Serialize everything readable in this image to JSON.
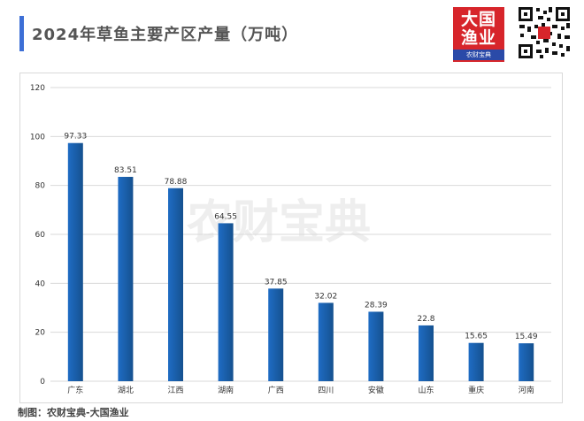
{
  "header": {
    "title": "2024年草鱼主要产区产量（万吨）",
    "accent_color": "#3d6fd6"
  },
  "logo": {
    "line1": "大国",
    "line2": "渔业",
    "line3": "农财宝典"
  },
  "watermark": "农财宝典",
  "footer": {
    "credit": "制图：农财宝典-大国渔业"
  },
  "colors": {
    "bar_top": "#1f6cc4",
    "bar_bottom": "#15518f",
    "grid": "#d9d9d9",
    "tick_text": "#333333",
    "logo_red": "#d7252b",
    "logo_blue": "#2a4aa8"
  },
  "chart_data": {
    "type": "bar",
    "title": "2024年草鱼主要产区产量（万吨）",
    "xlabel": "",
    "ylabel": "",
    "categories": [
      "广东",
      "湖北",
      "江西",
      "湖南",
      "广西",
      "四川",
      "安徽",
      "山东",
      "重庆",
      "河南"
    ],
    "values": [
      97.33,
      83.51,
      78.88,
      64.55,
      37.85,
      32.02,
      28.39,
      22.8,
      15.65,
      15.49
    ],
    "value_labels": [
      "97.33",
      "83.51",
      "78.88",
      "64.55",
      "37.85",
      "32.02",
      "28.39",
      "22.8",
      "15.65",
      "15.49"
    ],
    "ylim": [
      0,
      120
    ],
    "yticks": [
      "0",
      "20",
      "40",
      "60",
      "80",
      "100",
      "120"
    ],
    "grid": true,
    "legend": "none"
  }
}
